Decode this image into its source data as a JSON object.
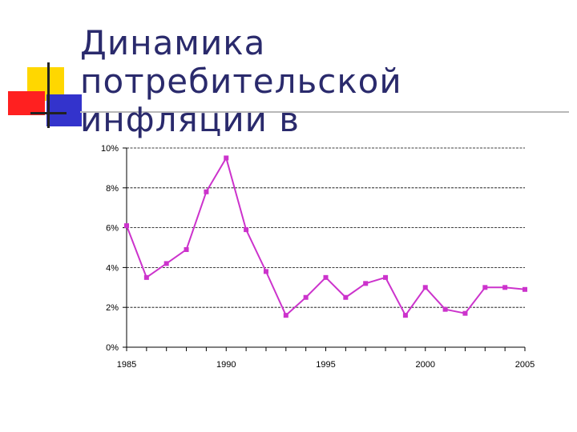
{
  "slide": {
    "title": "Динамика\nпотребительской\nинфляции в"
  },
  "chart_data": {
    "type": "line",
    "x": [
      1985,
      1986,
      1987,
      1988,
      1989,
      1990,
      1991,
      1992,
      1993,
      1994,
      1995,
      1996,
      1997,
      1998,
      1999,
      2000,
      2001,
      2002,
      2003,
      2004,
      2005
    ],
    "series": [
      {
        "values": [
          6.1,
          3.5,
          4.2,
          4.9,
          7.8,
          9.5,
          5.9,
          3.8,
          1.6,
          2.5,
          3.5,
          2.5,
          3.2,
          3.5,
          1.6,
          3.0,
          1.9,
          1.7,
          3.0,
          3.0,
          2.9
        ]
      }
    ],
    "ylim": [
      0,
      10
    ],
    "y_ticks": [
      "0%",
      "2%",
      "4%",
      "6%",
      "8%",
      "10%"
    ],
    "x_tick_labels": [
      "1985",
      "1990",
      "1995",
      "2000",
      "2005"
    ],
    "grid": true,
    "line_color": "#cc33cc",
    "title_color": "#2a2a6c"
  }
}
